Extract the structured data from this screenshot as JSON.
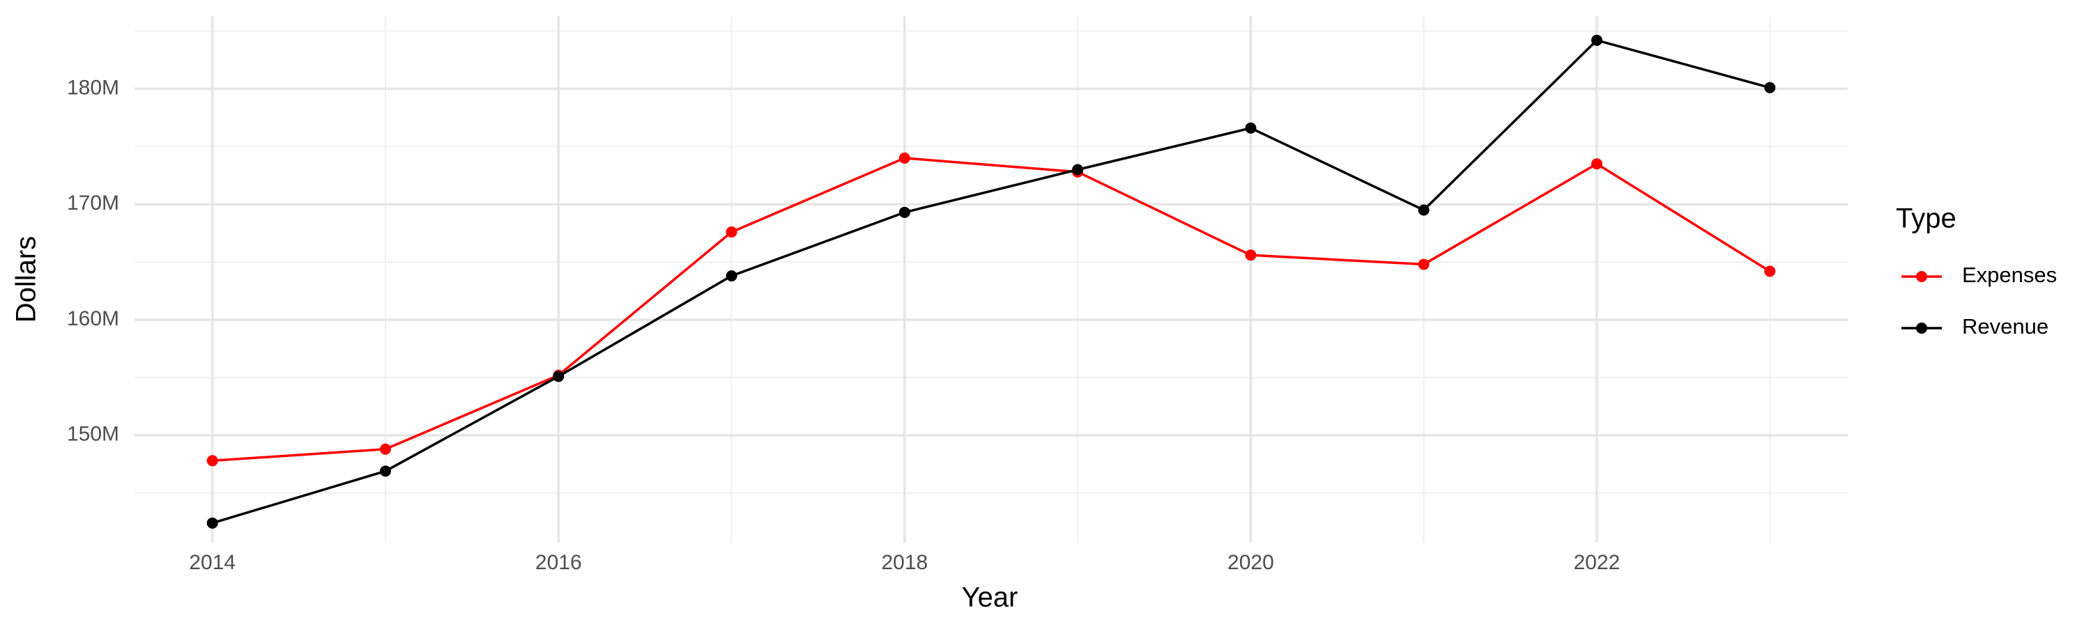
{
  "chart_data": {
    "type": "line",
    "x_label": "Year",
    "y_label": "Dollars",
    "legend_title": "Type",
    "legend_position": "right",
    "grid": true,
    "x": [
      2014,
      2015,
      2016,
      2017,
      2018,
      2019,
      2020,
      2021,
      2022,
      2023
    ],
    "series": [
      {
        "name": "Expenses",
        "color": "#ff0000",
        "values": [
          147800000,
          148800000,
          155200000,
          167600000,
          174000000,
          172800000,
          165600000,
          164800000,
          173500000,
          164200000
        ]
      },
      {
        "name": "Revenue",
        "color": "#000000",
        "values": [
          142400000,
          146900000,
          155100000,
          163800000,
          169300000,
          173000000,
          176600000,
          169500000,
          184200000,
          180100000
        ]
      }
    ],
    "xlim": [
      2013.55,
      2023.45
    ],
    "xticks": [
      2014,
      2016,
      2018,
      2020,
      2022
    ],
    "xminorticks": [
      2015,
      2017,
      2019,
      2021,
      2023
    ],
    "ylim": [
      140700000,
      186300000
    ],
    "yticks": [
      {
        "value": 150000000,
        "label": "150M"
      },
      {
        "value": 160000000,
        "label": "160M"
      },
      {
        "value": 170000000,
        "label": "170M"
      },
      {
        "value": 180000000,
        "label": "180M"
      }
    ],
    "yminorticks": [
      145000000,
      155000000,
      165000000,
      175000000,
      185000000
    ]
  }
}
